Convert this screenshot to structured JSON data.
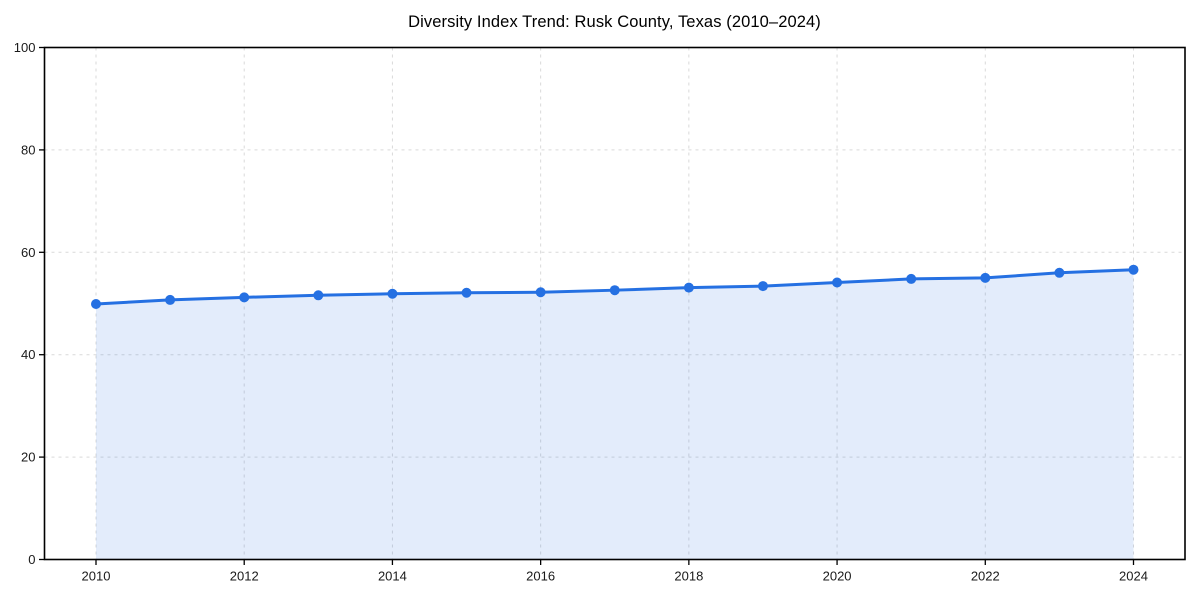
{
  "chart_data": {
    "type": "area",
    "title": "Diversity Index Trend: Rusk County, Texas (2010–2024)",
    "x": [
      2010,
      2011,
      2012,
      2013,
      2014,
      2015,
      2016,
      2017,
      2018,
      2019,
      2020,
      2021,
      2022,
      2023,
      2024
    ],
    "series": [
      {
        "name": "Diversity Index",
        "values": [
          49.9,
          50.7,
          51.2,
          51.6,
          51.9,
          52.1,
          52.2,
          52.6,
          53.1,
          53.4,
          54.1,
          54.8,
          55.0,
          56.0,
          56.6
        ]
      }
    ],
    "xlabel": "",
    "ylabel": "",
    "ylim": [
      0,
      100
    ],
    "x_ticks": [
      2010,
      2012,
      2014,
      2016,
      2018,
      2020,
      2022,
      2024
    ],
    "y_ticks": [
      0,
      20,
      40,
      60,
      80,
      100
    ],
    "grid": true,
    "grid_style": "dashed",
    "legend": "none",
    "marker": "circle",
    "colors": {
      "line": "#2570e2",
      "marker": "#2570e2",
      "fill": "#2570e2",
      "fill_opacity": 0.13,
      "grid": "#d9d9d9",
      "spine": "#000000",
      "tick_label": "#1a1a1a",
      "title": "#000000",
      "background": "#ffffff"
    }
  }
}
